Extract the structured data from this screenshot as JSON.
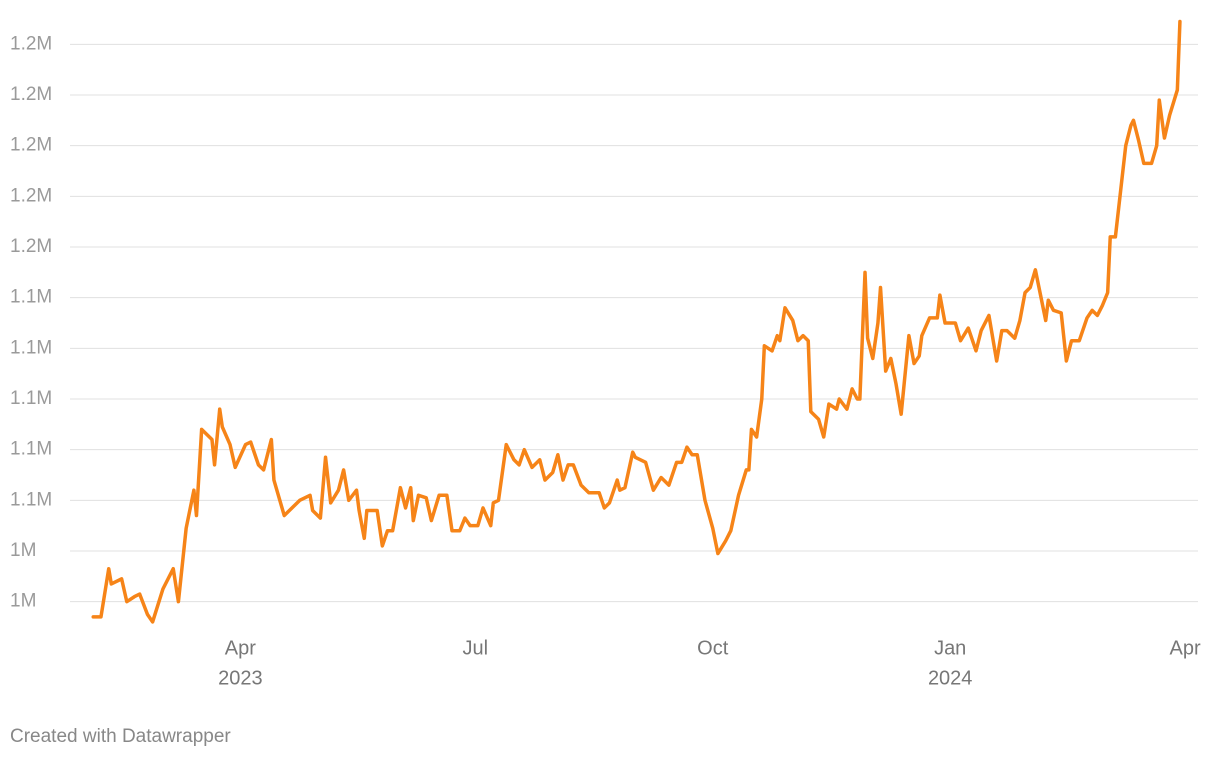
{
  "chart_data": {
    "type": "line",
    "color": "#f68418",
    "grid": true,
    "xlim": [
      "2023-01-25",
      "2024-04-06"
    ],
    "ylim": [
      1010000,
      1250000
    ],
    "yticks": [
      {
        "value": 1020000,
        "label": "1M"
      },
      {
        "value": 1040000,
        "label": "1M"
      },
      {
        "value": 1060000,
        "label": "1.1M"
      },
      {
        "value": 1080000,
        "label": "1.1M"
      },
      {
        "value": 1100000,
        "label": "1.1M"
      },
      {
        "value": 1120000,
        "label": "1.1M"
      },
      {
        "value": 1140000,
        "label": "1.1M"
      },
      {
        "value": 1160000,
        "label": "1.2M"
      },
      {
        "value": 1180000,
        "label": "1.2M"
      },
      {
        "value": 1200000,
        "label": "1.2M"
      },
      {
        "value": 1220000,
        "label": "1.2M"
      },
      {
        "value": 1240000,
        "label": "1.2M"
      }
    ],
    "xticks": [
      {
        "value": "2023-04-01",
        "label": "Apr"
      },
      {
        "value": "2023-07-01",
        "label": "Jul"
      },
      {
        "value": "2023-10-01",
        "label": "Oct"
      },
      {
        "value": "2024-01-01",
        "label": "Jan"
      },
      {
        "value": "2024-04-01",
        "label": "Apr"
      }
    ],
    "xtick_years": [
      {
        "value": "2023-04-01",
        "label": "2023"
      },
      {
        "value": "2024-01-01",
        "label": "2024"
      }
    ],
    "x": [
      "2023-02-03",
      "2023-02-06",
      "2023-02-09",
      "2023-02-10",
      "2023-02-14",
      "2023-02-16",
      "2023-02-19",
      "2023-02-21",
      "2023-02-24",
      "2023-02-26",
      "2023-03-02",
      "2023-03-06",
      "2023-03-08",
      "2023-03-11",
      "2023-03-14",
      "2023-03-15",
      "2023-03-17",
      "2023-03-21",
      "2023-03-22",
      "2023-03-24",
      "2023-03-25",
      "2023-03-28",
      "2023-03-30",
      "2023-04-03",
      "2023-04-05",
      "2023-04-08",
      "2023-04-10",
      "2023-04-13",
      "2023-04-14",
      "2023-04-18",
      "2023-04-24",
      "2023-04-28",
      "2023-04-29",
      "2023-05-02",
      "2023-05-04",
      "2023-05-06",
      "2023-05-09",
      "2023-05-11",
      "2023-05-13",
      "2023-05-16",
      "2023-05-17",
      "2023-05-19",
      "2023-05-20",
      "2023-05-24",
      "2023-05-26",
      "2023-05-28",
      "2023-05-30",
      "2023-06-02",
      "2023-06-04",
      "2023-06-06",
      "2023-06-07",
      "2023-06-09",
      "2023-06-12",
      "2023-06-14",
      "2023-06-17",
      "2023-06-20",
      "2023-06-22",
      "2023-06-25",
      "2023-06-27",
      "2023-06-29",
      "2023-07-02",
      "2023-07-04",
      "2023-07-07",
      "2023-07-08",
      "2023-07-10",
      "2023-07-13",
      "2023-07-16",
      "2023-07-18",
      "2023-07-20",
      "2023-07-23",
      "2023-07-26",
      "2023-07-28",
      "2023-07-31",
      "2023-08-02",
      "2023-08-04",
      "2023-08-06",
      "2023-08-08",
      "2023-08-11",
      "2023-08-14",
      "2023-08-18",
      "2023-08-20",
      "2023-08-22",
      "2023-08-25",
      "2023-08-26",
      "2023-08-28",
      "2023-08-31",
      "2023-09-01",
      "2023-09-05",
      "2023-09-08",
      "2023-09-11",
      "2023-09-14",
      "2023-09-17",
      "2023-09-19",
      "2023-09-21",
      "2023-09-23",
      "2023-09-25",
      "2023-09-28",
      "2023-10-01",
      "2023-10-03",
      "2023-10-06",
      "2023-10-08",
      "2023-10-11",
      "2023-10-14",
      "2023-10-15",
      "2023-10-16",
      "2023-10-18",
      "2023-10-20",
      "2023-10-21",
      "2023-10-24",
      "2023-10-26",
      "2023-10-27",
      "2023-10-29",
      "2023-11-01",
      "2023-11-03",
      "2023-11-05",
      "2023-11-07",
      "2023-11-08",
      "2023-11-11",
      "2023-11-13",
      "2023-11-15",
      "2023-11-18",
      "2023-11-19",
      "2023-11-22",
      "2023-11-24",
      "2023-11-26",
      "2023-11-27",
      "2023-11-29",
      "2023-11-30",
      "2023-12-02",
      "2023-12-04",
      "2023-12-05",
      "2023-12-07",
      "2023-12-09",
      "2023-12-11",
      "2023-12-13",
      "2023-12-16",
      "2023-12-18",
      "2023-12-20",
      "2023-12-21",
      "2023-12-24",
      "2023-12-27",
      "2023-12-28",
      "2023-12-30",
      "2024-01-03",
      "2024-01-05",
      "2024-01-08",
      "2024-01-11",
      "2024-01-13",
      "2024-01-16",
      "2024-01-19",
      "2024-01-21",
      "2024-01-23",
      "2024-01-26",
      "2024-01-28",
      "2024-01-30",
      "2024-02-01",
      "2024-02-03",
      "2024-02-05",
      "2024-02-07",
      "2024-02-08",
      "2024-02-10",
      "2024-02-13",
      "2024-02-15",
      "2024-02-17",
      "2024-02-20",
      "2024-02-23",
      "2024-02-25",
      "2024-02-27",
      "2024-02-29",
      "2024-03-02",
      "2024-03-03",
      "2024-03-05",
      "2024-03-07",
      "2024-03-09",
      "2024-03-11",
      "2024-03-12",
      "2024-03-14",
      "2024-03-16",
      "2024-03-19",
      "2024-03-21",
      "2024-03-22",
      "2024-03-24",
      "2024-03-26",
      "2024-03-29",
      "2024-03-30"
    ],
    "values": [
      1014000,
      1014000,
      1033000,
      1027000,
      1029000,
      1020000,
      1022000,
      1023000,
      1015000,
      1012000,
      1025000,
      1033000,
      1020000,
      1049000,
      1064000,
      1054000,
      1088000,
      1084000,
      1074000,
      1096000,
      1089000,
      1082000,
      1073000,
      1082000,
      1083000,
      1074000,
      1072000,
      1084000,
      1068000,
      1054000,
      1060000,
      1062000,
      1056000,
      1053000,
      1077000,
      1059000,
      1064000,
      1072000,
      1060000,
      1064000,
      1056000,
      1045000,
      1056000,
      1056000,
      1042000,
      1048000,
      1048000,
      1065000,
      1057000,
      1065000,
      1052000,
      1062000,
      1061000,
      1052000,
      1062000,
      1062000,
      1048000,
      1048000,
      1053000,
      1050000,
      1050000,
      1057000,
      1050000,
      1059000,
      1060000,
      1082000,
      1076000,
      1074000,
      1080000,
      1073000,
      1076000,
      1068000,
      1071000,
      1078000,
      1068000,
      1074000,
      1074000,
      1066000,
      1063000,
      1063000,
      1057000,
      1059000,
      1068000,
      1064000,
      1065000,
      1079000,
      1077000,
      1075000,
      1064000,
      1069000,
      1066000,
      1075000,
      1075000,
      1081000,
      1078000,
      1078000,
      1060000,
      1049000,
      1039000,
      1044000,
      1048000,
      1062000,
      1072000,
      1072000,
      1088000,
      1085000,
      1100000,
      1121000,
      1119000,
      1125000,
      1123000,
      1136000,
      1131000,
      1123000,
      1125000,
      1123000,
      1095000,
      1092000,
      1085000,
      1098000,
      1096000,
      1100000,
      1096000,
      1104000,
      1100000,
      1100000,
      1150000,
      1124000,
      1116000,
      1130000,
      1144000,
      1111000,
      1116000,
      1106000,
      1094000,
      1125000,
      1114000,
      1117000,
      1125000,
      1132000,
      1132000,
      1141000,
      1130000,
      1130000,
      1123000,
      1128000,
      1119000,
      1127000,
      1133000,
      1115000,
      1127000,
      1127000,
      1124000,
      1131000,
      1142000,
      1144000,
      1151000,
      1141000,
      1131000,
      1139000,
      1135000,
      1134000,
      1115000,
      1123000,
      1123000,
      1132000,
      1135000,
      1133000,
      1137000,
      1142000,
      1164000,
      1164000,
      1182000,
      1200000,
      1208000,
      1210000,
      1202000,
      1193000,
      1193000,
      1200000,
      1218000,
      1203000,
      1212000,
      1222000,
      1249000
    ]
  },
  "footer": "Created with Datawrapper"
}
